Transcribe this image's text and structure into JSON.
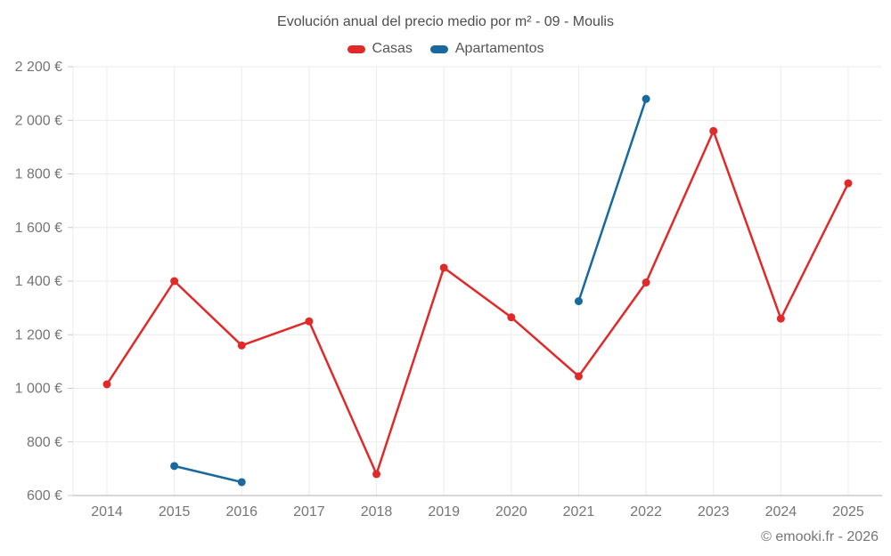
{
  "title": "Evolución anual del precio medio por m² - 09 - Moulis",
  "attribution": "© emooki.fr - 2026",
  "chart_data": {
    "type": "line",
    "title": "Evolución anual del precio medio por m² - 09 - Moulis",
    "x": [
      2014,
      2015,
      2016,
      2017,
      2018,
      2019,
      2020,
      2021,
      2022,
      2023,
      2024,
      2025
    ],
    "series": [
      {
        "name": "Casas",
        "color": "#e02a2a",
        "values": [
          1015,
          1400,
          1160,
          1250,
          680,
          1450,
          1265,
          1045,
          1395,
          1960,
          1260,
          1765
        ]
      },
      {
        "name": "Apartamentos",
        "color": "#17699e",
        "values": [
          null,
          710,
          650,
          null,
          null,
          null,
          null,
          1325,
          2080,
          null,
          null,
          null
        ]
      }
    ],
    "ylim": [
      600,
      2200
    ],
    "ytick_step": 200,
    "y_unit": "€",
    "ytick_labels": [
      "600 €",
      "800 €",
      "1 000 €",
      "1 200 €",
      "1 400 €",
      "1 600 €",
      "1 800 €",
      "2 000 €",
      "2 200 €"
    ],
    "grid": true,
    "legend_position": "top"
  }
}
